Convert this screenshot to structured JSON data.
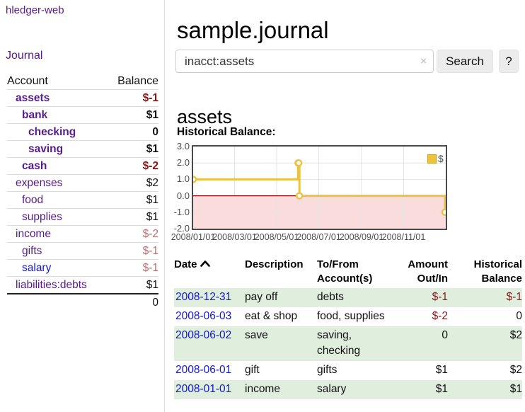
{
  "brand": "hledger-web",
  "sidebar": {
    "journal_label": "Journal",
    "accounts": {
      "headers": {
        "account": "Account",
        "balance": "Balance"
      },
      "rows": [
        {
          "account": "assets",
          "indent": 1,
          "bold": true,
          "link": "visited",
          "balance": "$-1",
          "neg": "strong"
        },
        {
          "account": "bank",
          "indent": 2,
          "bold": true,
          "link": "visited",
          "balance": "$1",
          "neg": null
        },
        {
          "account": "checking",
          "indent": 3,
          "bold": true,
          "link": "visited",
          "balance": "0",
          "neg": null
        },
        {
          "account": "saving",
          "indent": 3,
          "bold": true,
          "link": "visited",
          "balance": "$1",
          "neg": null
        },
        {
          "account": "cash",
          "indent": 2,
          "bold": true,
          "link": "visited",
          "balance": "$-2",
          "neg": "strong"
        },
        {
          "account": "expenses",
          "indent": 1,
          "bold": false,
          "link": "visited",
          "balance": "$2",
          "neg": null
        },
        {
          "account": "food",
          "indent": 2,
          "bold": false,
          "link": "visited",
          "balance": "$1",
          "neg": null
        },
        {
          "account": "supplies",
          "indent": 2,
          "bold": false,
          "link": "visited",
          "balance": "$1",
          "neg": null
        },
        {
          "account": "income",
          "indent": 1,
          "bold": false,
          "link": "visited",
          "balance": "$-2",
          "neg": "soft"
        },
        {
          "account": "gifts",
          "indent": 2,
          "bold": false,
          "link": "visited",
          "balance": "$-1",
          "neg": "soft"
        },
        {
          "account": "salary",
          "indent": 2,
          "bold": false,
          "link": "unvisited",
          "balance": "$-1",
          "neg": "soft"
        },
        {
          "account": "liabilities:debts",
          "indent": 1,
          "bold": false,
          "link": "visited",
          "balance": "$1",
          "neg": null
        }
      ],
      "total": "0"
    }
  },
  "header": {
    "title": "sample.journal"
  },
  "search": {
    "value": "inacct:assets",
    "clear_icon": "×",
    "search_label": "Search",
    "help_label": "?"
  },
  "main": {
    "account_heading": "assets",
    "chart_label": "Historical Balance:"
  },
  "chart_data": {
    "type": "line",
    "title": "Historical Balance:",
    "series": [
      {
        "name": "$",
        "color": "#edc240",
        "step": true,
        "points": [
          [
            "2008-01-01",
            1
          ],
          [
            "2008-06-01",
            2
          ],
          [
            "2008-06-02",
            2
          ],
          [
            "2008-06-03",
            0
          ],
          [
            "2008-12-31",
            -1
          ]
        ]
      }
    ],
    "x_range": [
      "2008-01-01",
      "2009-01-01"
    ],
    "x_ticks": [
      {
        "date": "2008-01-01",
        "label": "2008/01/01"
      },
      {
        "date": "2008-03-01",
        "label": "2008/03/01"
      },
      {
        "date": "2008-05-01",
        "label": "2008/05/01"
      },
      {
        "date": "2008-07-01",
        "label": "2008/07/01"
      },
      {
        "date": "2008-09-01",
        "label": "2008/09/01"
      },
      {
        "date": "2008-11-01",
        "label": "2008/11/01"
      }
    ],
    "y_ticks": [
      "3.0",
      "2.0",
      "1.0",
      "0.0",
      "-1.0",
      "-2.0"
    ],
    "ylim": [
      -2,
      3
    ],
    "grid": true,
    "legend_position": "top-right",
    "colors": {
      "line": "#edc240",
      "marker_fill": "#ffffff",
      "negative_region": "#fadcdc",
      "zero_line": "#8b0000",
      "grid_line": "#e4e4e4",
      "plot_border": "#4a4a4a"
    }
  },
  "transactions": {
    "headers": [
      {
        "label": "Date",
        "sorted": "asc",
        "align": "left"
      },
      {
        "label": "Description",
        "align": "left"
      },
      {
        "label": "To/From Account(s)",
        "align": "left"
      },
      {
        "label": "Amount Out/In",
        "align": "right"
      },
      {
        "label": "Historical Balance",
        "align": "right"
      }
    ],
    "rows": [
      {
        "date": "2008-12-31",
        "description": "pay off",
        "accounts": "debts",
        "amount": "$-1",
        "amount_neg": true,
        "balance": "$-1",
        "balance_neg": true,
        "shaded": true
      },
      {
        "date": "2008-06-03",
        "description": "eat & shop",
        "accounts": "food, supplies",
        "amount": "$-2",
        "amount_neg": true,
        "balance": "0",
        "balance_neg": false,
        "shaded": false
      },
      {
        "date": "2008-06-02",
        "description": "save",
        "accounts": "saving, checking",
        "amount": "0",
        "amount_neg": false,
        "balance": "$2",
        "balance_neg": false,
        "shaded": true
      },
      {
        "date": "2008-06-01",
        "description": "gift",
        "accounts": "gifts",
        "amount": "$1",
        "amount_neg": false,
        "balance": "$2",
        "balance_neg": false,
        "shaded": false
      },
      {
        "date": "2008-01-01",
        "description": "income",
        "accounts": "salary",
        "amount": "$1",
        "amount_neg": false,
        "balance": "$1",
        "balance_neg": false,
        "shaded": true
      }
    ]
  }
}
